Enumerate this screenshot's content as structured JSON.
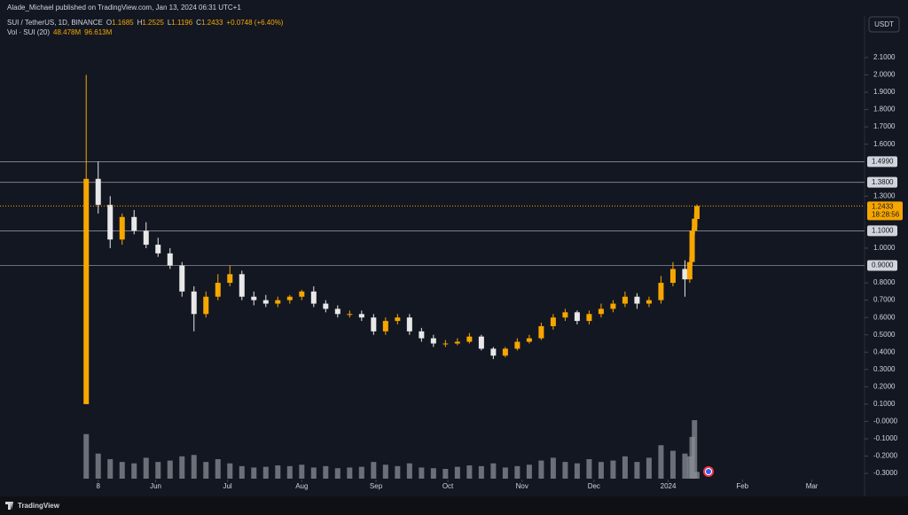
{
  "chart_data": {
    "type": "candlestick",
    "publisher": "Alade_Michael published on TradingView.com, Jan 13, 2024 06:31 UTC+1",
    "symbol": "SUI / TetherUS, 1D, BINANCE",
    "legend": {
      "o": "O",
      "h": "H",
      "l": "L",
      "c": "C",
      "change": "+0.0748 (+6.40%)"
    },
    "volume_title": "Vol · SUI (20)",
    "volume_label": "48.478M",
    "volume_ma_label": "96.613M",
    "currency": "USDT",
    "countdown": "18:28:56",
    "brand": "TradingView",
    "x": [
      0,
      5,
      10,
      15,
      20,
      25,
      30,
      35,
      40,
      45,
      50,
      55,
      60,
      65,
      70,
      75,
      80,
      85,
      90,
      95,
      100,
      105,
      110,
      115,
      120,
      125,
      130,
      135,
      140,
      145,
      150,
      155,
      160,
      165,
      170,
      175,
      180,
      185,
      190,
      195,
      200,
      205,
      210,
      215,
      220,
      225,
      230,
      235,
      240,
      245,
      250,
      252,
      253,
      254,
      255
    ],
    "open": [
      0.1,
      1.4,
      1.25,
      1.05,
      1.18,
      1.1,
      1.02,
      0.97,
      0.9,
      0.75,
      0.62,
      0.72,
      0.8,
      0.85,
      0.72,
      0.7,
      0.68,
      0.7,
      0.72,
      0.75,
      0.68,
      0.65,
      0.62,
      0.62,
      0.6,
      0.52,
      0.58,
      0.6,
      0.52,
      0.48,
      0.45,
      0.45,
      0.46,
      0.49,
      0.42,
      0.38,
      0.42,
      0.46,
      0.48,
      0.55,
      0.6,
      0.63,
      0.58,
      0.62,
      0.65,
      0.68,
      0.72,
      0.68,
      0.7,
      0.8,
      0.88,
      0.82,
      0.92,
      1.1,
      1.1685
    ],
    "high": [
      2.0,
      1.5,
      1.3,
      1.2,
      1.22,
      1.15,
      1.06,
      1.0,
      0.92,
      0.78,
      0.75,
      0.85,
      0.9,
      0.87,
      0.75,
      0.73,
      0.72,
      0.73,
      0.76,
      0.78,
      0.7,
      0.67,
      0.64,
      0.64,
      0.62,
      0.6,
      0.62,
      0.62,
      0.54,
      0.5,
      0.47,
      0.48,
      0.51,
      0.5,
      0.43,
      0.43,
      0.48,
      0.5,
      0.57,
      0.62,
      0.65,
      0.64,
      0.64,
      0.68,
      0.7,
      0.75,
      0.74,
      0.72,
      0.84,
      0.92,
      0.93,
      0.95,
      1.12,
      1.2,
      1.2525
    ],
    "low": [
      0.1,
      1.2,
      1.0,
      1.02,
      1.08,
      1.0,
      0.95,
      0.88,
      0.72,
      0.52,
      0.6,
      0.7,
      0.78,
      0.7,
      0.67,
      0.66,
      0.66,
      0.68,
      0.7,
      0.66,
      0.63,
      0.6,
      0.6,
      0.58,
      0.5,
      0.5,
      0.56,
      0.5,
      0.46,
      0.43,
      0.43,
      0.44,
      0.45,
      0.41,
      0.36,
      0.37,
      0.41,
      0.45,
      0.47,
      0.53,
      0.58,
      0.56,
      0.56,
      0.6,
      0.63,
      0.66,
      0.65,
      0.66,
      0.68,
      0.78,
      0.72,
      0.8,
      0.9,
      1.08,
      1.1196
    ],
    "close": [
      1.4,
      1.25,
      1.05,
      1.18,
      1.1,
      1.02,
      0.97,
      0.9,
      0.75,
      0.62,
      0.72,
      0.8,
      0.85,
      0.72,
      0.7,
      0.68,
      0.7,
      0.72,
      0.75,
      0.68,
      0.65,
      0.62,
      0.62,
      0.6,
      0.52,
      0.58,
      0.6,
      0.52,
      0.48,
      0.45,
      0.45,
      0.46,
      0.49,
      0.42,
      0.38,
      0.42,
      0.46,
      0.48,
      0.55,
      0.6,
      0.63,
      0.58,
      0.62,
      0.65,
      0.68,
      0.72,
      0.68,
      0.7,
      0.8,
      0.88,
      0.82,
      0.92,
      1.1,
      1.17,
      1.2433
    ],
    "volume": [
      320,
      180,
      140,
      120,
      110,
      150,
      120,
      130,
      160,
      170,
      120,
      140,
      110,
      90,
      80,
      85,
      95,
      90,
      100,
      80,
      90,
      75,
      80,
      85,
      120,
      100,
      90,
      110,
      80,
      75,
      70,
      85,
      95,
      90,
      110,
      80,
      90,
      100,
      130,
      150,
      120,
      110,
      140,
      120,
      130,
      160,
      120,
      150,
      240,
      200,
      180,
      160,
      300,
      420,
      48.478
    ],
    "up_color": "#f7a600",
    "down_color": "#e8e8e8",
    "volume_color": "#8a8d96",
    "xlim": [
      -36,
      325
    ],
    "ylim": [
      -0.33,
      2.34
    ],
    "xticks": [
      {
        "value": 5,
        "label": "8"
      },
      {
        "value": 29,
        "label": "Jun"
      },
      {
        "value": 59,
        "label": "Jul"
      },
      {
        "value": 90,
        "label": "Aug"
      },
      {
        "value": 121,
        "label": "Sep"
      },
      {
        "value": 151,
        "label": "Oct"
      },
      {
        "value": 182,
        "label": "Nov"
      },
      {
        "value": 212,
        "label": "Dec"
      },
      {
        "value": 243,
        "label": "2024"
      },
      {
        "value": 274,
        "label": "Feb"
      },
      {
        "value": 303,
        "label": "Mar"
      }
    ],
    "yticks": [
      {
        "value": 2.1,
        "label": "2.1000"
      },
      {
        "value": 2.0,
        "label": "2.0000"
      },
      {
        "value": 1.9,
        "label": "1.9000"
      },
      {
        "value": 1.8,
        "label": "1.8000"
      },
      {
        "value": 1.7,
        "label": "1.7000"
      },
      {
        "value": 1.6,
        "label": "1.6000"
      },
      {
        "value": 1.3,
        "label": "1.3000"
      },
      {
        "value": 1.0,
        "label": "1.0000"
      },
      {
        "value": 0.8,
        "label": "0.8000"
      },
      {
        "value": 0.7,
        "label": "0.7000"
      },
      {
        "value": 0.6,
        "label": "0.6000"
      },
      {
        "value": 0.5,
        "label": "0.5000"
      },
      {
        "value": 0.4,
        "label": "0.4000"
      },
      {
        "value": 0.3,
        "label": "0.3000"
      },
      {
        "value": 0.2,
        "label": "0.2000"
      },
      {
        "value": 0.1,
        "label": "0.1000"
      },
      {
        "value": 0,
        "label": "-0.0000"
      },
      {
        "value": -0.1,
        "label": "-0.1000"
      },
      {
        "value": -0.2,
        "label": "-0.2000"
      },
      {
        "value": -0.3,
        "label": "-0.3000"
      }
    ],
    "hlines": [
      {
        "value": 1.499,
        "label": "1.4990"
      },
      {
        "value": 1.38,
        "label": "1.3800"
      },
      {
        "value": 1.1,
        "label": "1.1000"
      },
      {
        "value": 0.9,
        "label": "0.9000"
      }
    ]
  }
}
